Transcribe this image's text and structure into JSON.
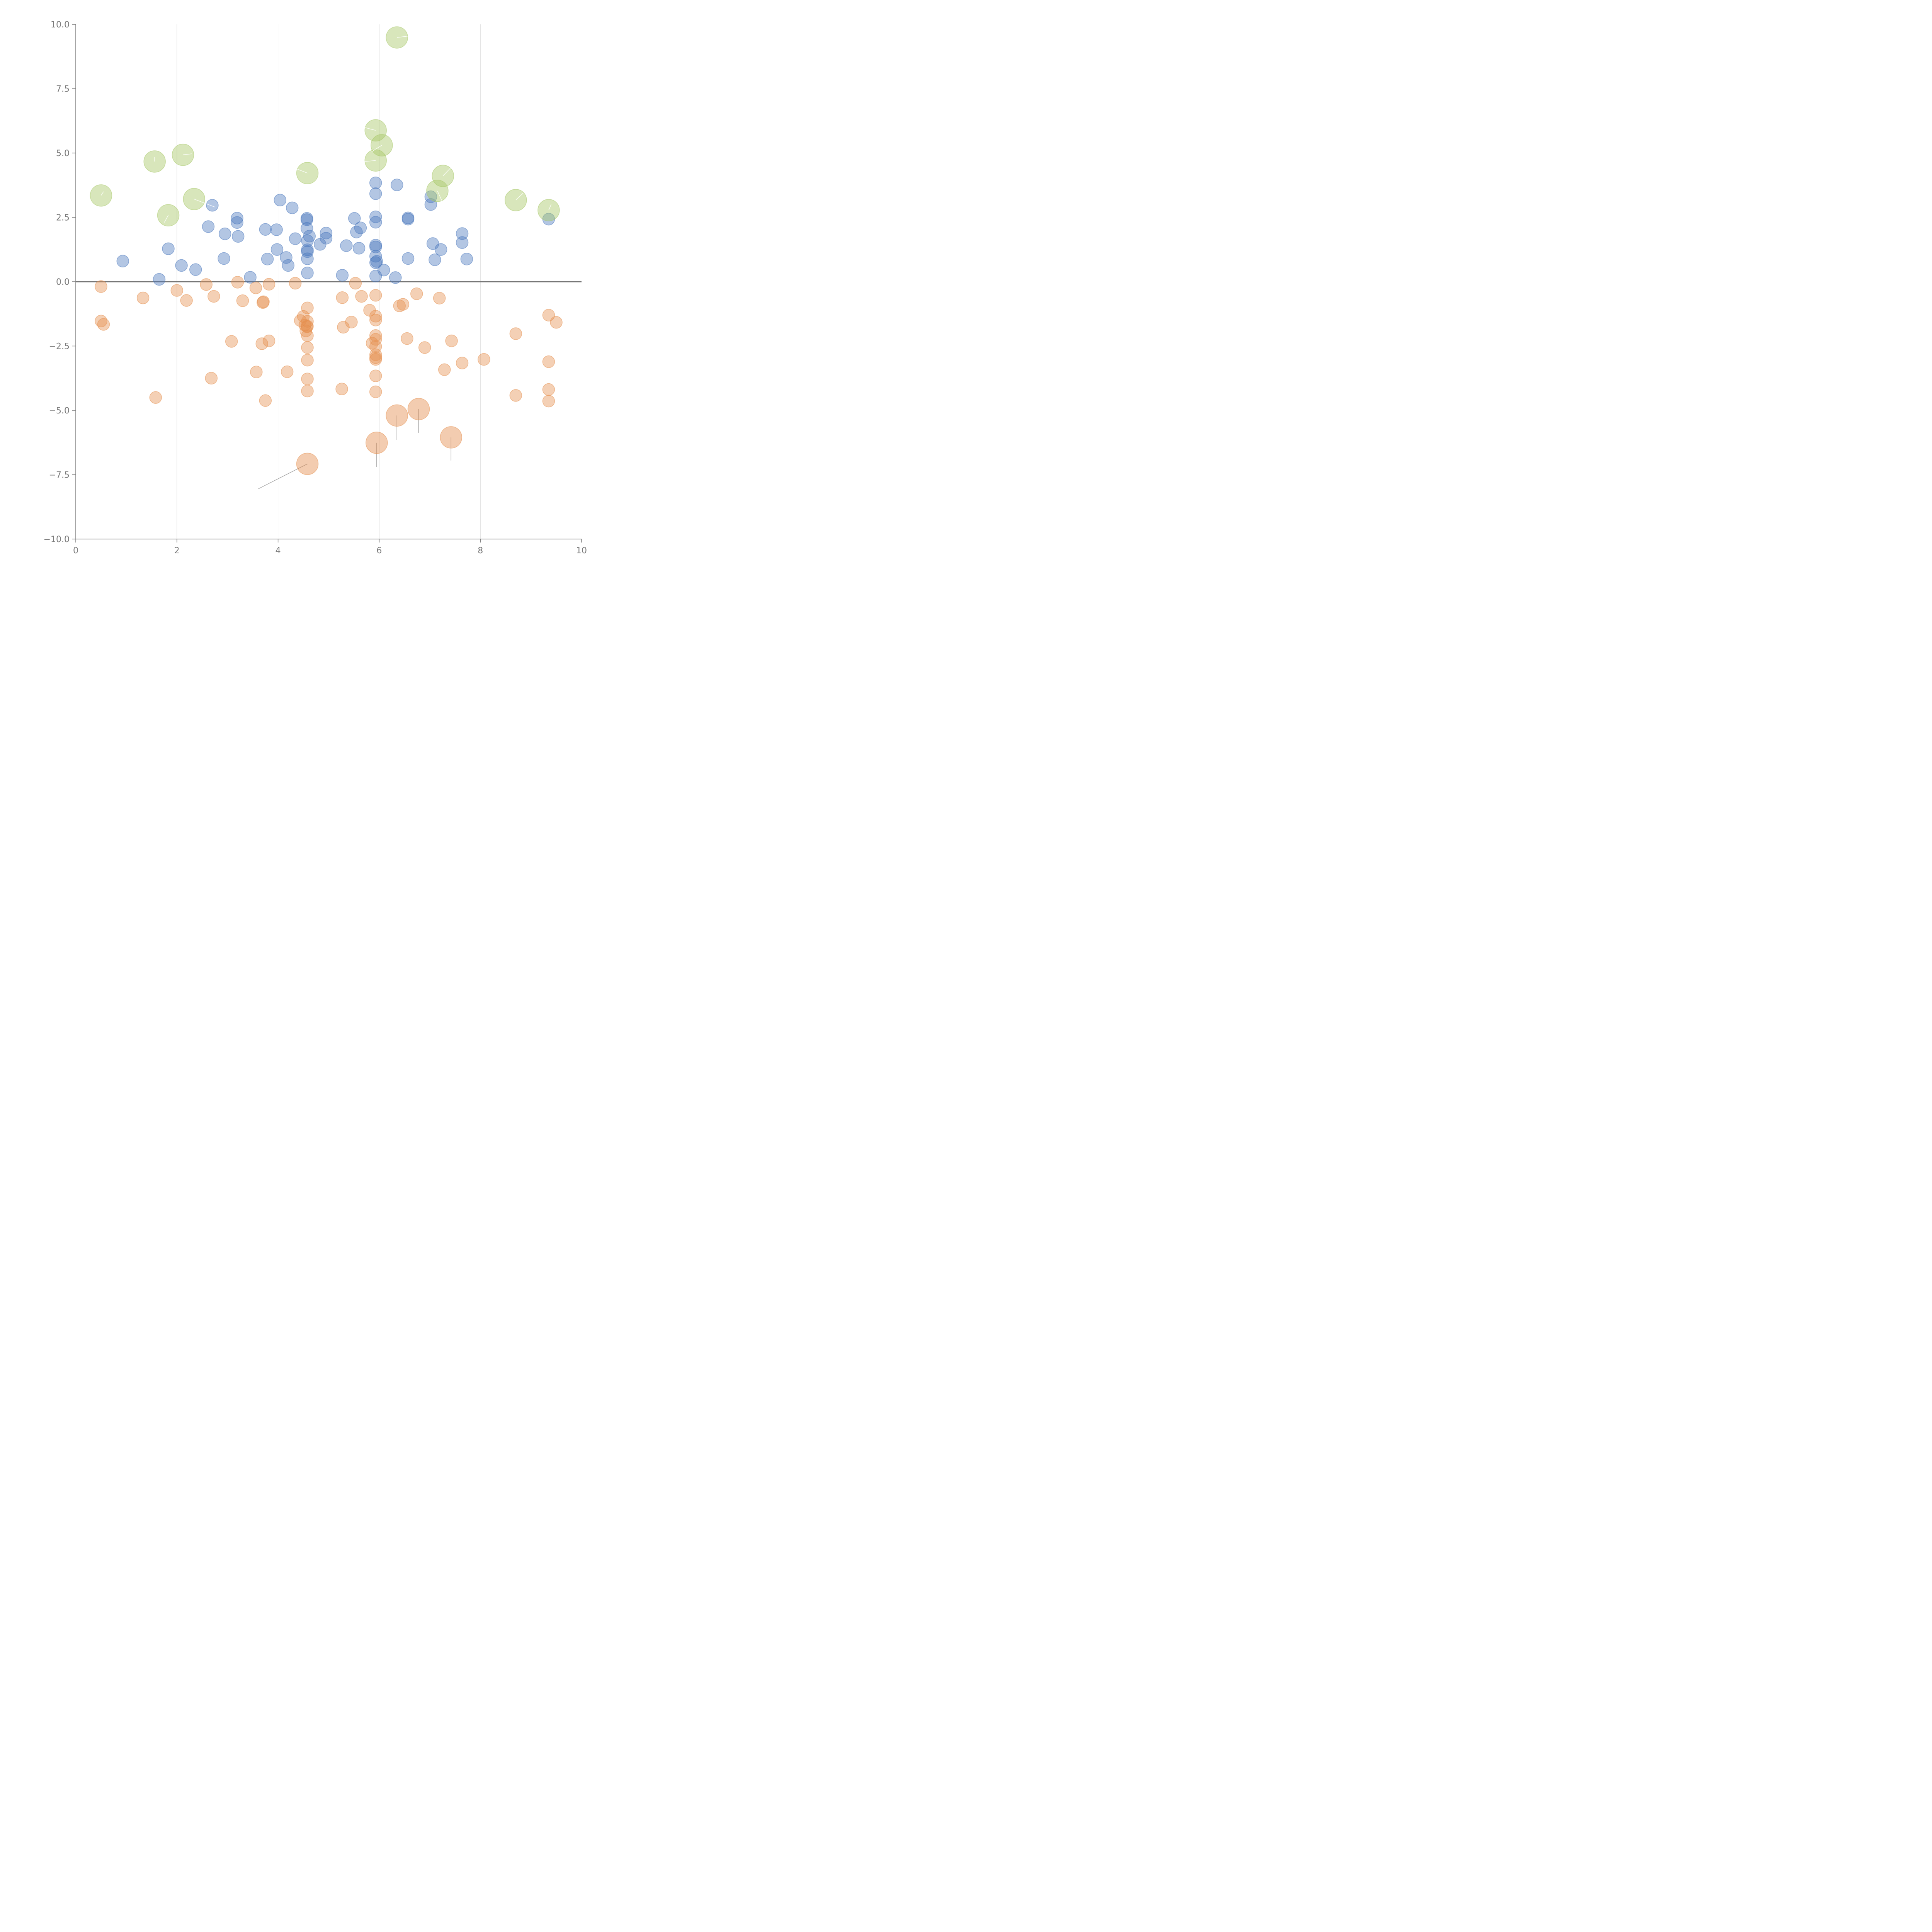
{
  "chart_data": {
    "type": "scatter",
    "xlim": [
      0,
      10
    ],
    "ylim": [
      -10,
      10
    ],
    "x_ticks": [
      "0",
      "2",
      "4",
      "6",
      "8",
      "10"
    ],
    "y_ticks": [
      "−10.0",
      "−7.5",
      "−5.0",
      "−2.5",
      "0.0",
      "2.5",
      "5.0",
      "7.5",
      "10.0"
    ],
    "x_tick_values": [
      0,
      2,
      4,
      6,
      8,
      10
    ],
    "y_tick_values": [
      -10,
      -7.5,
      -5,
      -2.5,
      0,
      2.5,
      5,
      7.5,
      10
    ],
    "grid": {
      "vertical": true,
      "horizontal": false
    },
    "zero_line": true,
    "series": [
      {
        "color": "#4a78bd",
        "size": "small",
        "points": [
          [
            0.93,
            0.8
          ],
          [
            1.65,
            0.09
          ],
          [
            1.83,
            1.28
          ],
          [
            2.09,
            0.63
          ],
          [
            2.37,
            0.47
          ],
          [
            2.62,
            2.14
          ],
          [
            2.7,
            2.97
          ],
          [
            2.93,
            0.9
          ],
          [
            2.95,
            1.86
          ],
          [
            3.19,
            2.3
          ],
          [
            3.19,
            2.47
          ],
          [
            3.21,
            1.76
          ],
          [
            3.45,
            0.17
          ],
          [
            3.75,
            2.03
          ],
          [
            3.79,
            0.88
          ],
          [
            3.97,
            2.02
          ],
          [
            3.98,
            1.25
          ],
          [
            4.04,
            3.17
          ],
          [
            4.16,
            0.94
          ],
          [
            4.2,
            0.63
          ],
          [
            4.28,
            2.87
          ],
          [
            4.34,
            1.67
          ],
          [
            4.57,
            2.46
          ],
          [
            4.57,
            2.41
          ],
          [
            4.57,
            2.07
          ],
          [
            4.58,
            1.59
          ],
          [
            4.58,
            1.24
          ],
          [
            4.58,
            1.17
          ],
          [
            4.58,
            0.89
          ],
          [
            4.58,
            0.34
          ],
          [
            4.62,
            1.77
          ],
          [
            4.83,
            1.45
          ],
          [
            4.95,
            1.89
          ],
          [
            4.95,
            1.69
          ],
          [
            5.27,
            0.25
          ],
          [
            5.35,
            1.4
          ],
          [
            5.51,
            2.46
          ],
          [
            5.55,
            1.93
          ],
          [
            5.6,
            1.3
          ],
          [
            5.63,
            2.09
          ],
          [
            5.93,
            3.84
          ],
          [
            5.93,
            3.42
          ],
          [
            5.93,
            2.52
          ],
          [
            5.93,
            2.31
          ],
          [
            5.93,
            1.42
          ],
          [
            5.93,
            1.35
          ],
          [
            5.93,
            0.99
          ],
          [
            5.93,
            0.74
          ],
          [
            5.93,
            0.22
          ],
          [
            5.95,
            0.79
          ],
          [
            6.09,
            0.45
          ],
          [
            6.32,
            0.16
          ],
          [
            6.35,
            3.76
          ],
          [
            6.57,
            2.48
          ],
          [
            6.57,
            2.43
          ],
          [
            6.57,
            0.9
          ],
          [
            7.02,
            3.3
          ],
          [
            7.02,
            3.0
          ],
          [
            7.06,
            1.48
          ],
          [
            7.1,
            0.85
          ],
          [
            7.22,
            1.25
          ],
          [
            7.64,
            1.87
          ],
          [
            7.64,
            1.52
          ],
          [
            7.73,
            0.88
          ],
          [
            9.35,
            2.43
          ]
        ]
      },
      {
        "color": "#e58f4f",
        "size": "small",
        "points": [
          [
            0.5,
            -0.19
          ],
          [
            0.5,
            -1.53
          ],
          [
            0.55,
            -1.66
          ],
          [
            1.33,
            -0.63
          ],
          [
            1.58,
            -4.5
          ],
          [
            2.0,
            -0.34
          ],
          [
            2.19,
            -0.73
          ],
          [
            2.58,
            -0.11
          ],
          [
            2.73,
            -0.57
          ],
          [
            2.68,
            -3.75
          ],
          [
            3.08,
            -2.32
          ],
          [
            3.2,
            -0.02
          ],
          [
            3.3,
            -0.74
          ],
          [
            3.56,
            -0.24
          ],
          [
            3.57,
            -3.51
          ],
          [
            3.68,
            -2.41
          ],
          [
            3.7,
            -0.81
          ],
          [
            3.71,
            -0.78
          ],
          [
            3.75,
            -4.62
          ],
          [
            3.82,
            -0.1
          ],
          [
            3.82,
            -2.3
          ],
          [
            4.18,
            -3.5
          ],
          [
            4.34,
            -0.06
          ],
          [
            4.44,
            -1.51
          ],
          [
            4.5,
            -1.35
          ],
          [
            4.53,
            -1.69
          ],
          [
            4.55,
            -1.91
          ],
          [
            4.57,
            -1.75
          ],
          [
            4.58,
            -1.54
          ],
          [
            4.58,
            -1.73
          ],
          [
            4.58,
            -2.1
          ],
          [
            4.58,
            -2.56
          ],
          [
            4.58,
            -3.05
          ],
          [
            4.58,
            -3.78
          ],
          [
            4.58,
            -4.25
          ],
          [
            4.58,
            -1.02
          ],
          [
            5.26,
            -4.17
          ],
          [
            5.27,
            -0.62
          ],
          [
            5.29,
            -1.77
          ],
          [
            5.45,
            -1.57
          ],
          [
            5.53,
            -0.06
          ],
          [
            5.65,
            -0.57
          ],
          [
            5.81,
            -1.11
          ],
          [
            5.86,
            -2.39
          ],
          [
            5.93,
            -0.53
          ],
          [
            5.93,
            -1.34
          ],
          [
            5.93,
            -1.49
          ],
          [
            5.93,
            -2.09
          ],
          [
            5.93,
            -2.24
          ],
          [
            5.93,
            -2.52
          ],
          [
            5.93,
            -2.84
          ],
          [
            5.93,
            -2.95
          ],
          [
            5.93,
            -3.02
          ],
          [
            5.93,
            -3.66
          ],
          [
            5.93,
            -4.28
          ],
          [
            6.4,
            -0.94
          ],
          [
            6.47,
            -0.88
          ],
          [
            6.55,
            -2.21
          ],
          [
            6.74,
            -0.47
          ],
          [
            6.9,
            -2.56
          ],
          [
            7.19,
            -0.64
          ],
          [
            7.29,
            -3.42
          ],
          [
            7.43,
            -2.3
          ],
          [
            7.64,
            -3.16
          ],
          [
            8.07,
            -3.02
          ],
          [
            8.7,
            -2.02
          ],
          [
            8.7,
            -4.42
          ],
          [
            9.35,
            -1.3
          ],
          [
            9.35,
            -3.11
          ],
          [
            9.35,
            -4.19
          ],
          [
            9.35,
            -4.64
          ],
          [
            9.5,
            -1.58
          ]
        ]
      },
      {
        "color": "#a8c868",
        "size": "large",
        "points": [
          [
            0.5,
            3.35
          ],
          [
            1.56,
            4.67
          ],
          [
            1.83,
            2.58
          ],
          [
            2.12,
            4.93
          ],
          [
            2.34,
            3.21
          ],
          [
            4.58,
            4.22
          ],
          [
            5.93,
            5.88
          ],
          [
            6.05,
            5.3
          ],
          [
            5.93,
            4.71
          ],
          [
            6.35,
            9.49
          ],
          [
            7.15,
            3.53
          ],
          [
            7.26,
            4.11
          ],
          [
            8.7,
            3.17
          ],
          [
            9.35,
            2.78
          ]
        ]
      },
      {
        "color": "#e58f4f",
        "size": "large",
        "points": [
          [
            4.58,
            -7.08
          ],
          [
            5.95,
            -6.26
          ],
          [
            6.35,
            -5.2
          ],
          [
            6.78,
            -4.95
          ],
          [
            7.42,
            -6.05
          ]
        ]
      }
    ],
    "leader_lines": [
      {
        "series": 2,
        "from": [
          0.5,
          3.35
        ],
        "to": [
          0.55,
          3.5
        ]
      },
      {
        "series": 2,
        "from": [
          1.56,
          4.67
        ],
        "to": [
          1.56,
          4.85
        ]
      },
      {
        "series": 2,
        "from": [
          1.83,
          2.58
        ],
        "to": [
          1.75,
          2.3
        ]
      },
      {
        "series": 2,
        "from": [
          2.12,
          4.93
        ],
        "to": [
          2.3,
          4.97
        ]
      },
      {
        "series": 2,
        "from": [
          2.34,
          3.21
        ],
        "to": [
          2.75,
          2.9
        ]
      },
      {
        "series": 2,
        "from": [
          4.58,
          4.22
        ],
        "to": [
          4.15,
          4.55
        ]
      },
      {
        "series": 2,
        "from": [
          5.93,
          5.88
        ],
        "to": [
          5.5,
          6.1
        ]
      },
      {
        "series": 2,
        "from": [
          6.05,
          5.3
        ],
        "to": [
          5.85,
          5.05
        ]
      },
      {
        "series": 2,
        "from": [
          5.93,
          4.71
        ],
        "to": [
          5.6,
          4.65
        ]
      },
      {
        "series": 2,
        "from": [
          6.35,
          9.49
        ],
        "to": [
          6.6,
          9.55
        ]
      },
      {
        "series": 2,
        "from": [
          7.15,
          3.53
        ],
        "to": [
          7.25,
          3.1
        ]
      },
      {
        "series": 2,
        "from": [
          7.26,
          4.11
        ],
        "to": [
          7.45,
          4.5
        ]
      },
      {
        "series": 2,
        "from": [
          8.7,
          3.17
        ],
        "to": [
          8.85,
          3.45
        ]
      },
      {
        "series": 2,
        "from": [
          9.35,
          2.78
        ],
        "to": [
          9.4,
          3.0
        ]
      },
      {
        "series": 3,
        "from": [
          4.58,
          -7.08
        ],
        "to": [
          3.61,
          -8.05
        ]
      },
      {
        "series": 3,
        "from": [
          5.95,
          -6.26
        ],
        "to": [
          5.95,
          -7.2
        ]
      },
      {
        "series": 3,
        "from": [
          6.35,
          -5.2
        ],
        "to": [
          6.35,
          -6.15
        ]
      },
      {
        "series": 3,
        "from": [
          6.78,
          -4.95
        ],
        "to": [
          6.78,
          -5.87
        ]
      },
      {
        "series": 3,
        "from": [
          7.42,
          -6.05
        ],
        "to": [
          7.42,
          -6.95
        ]
      }
    ]
  }
}
